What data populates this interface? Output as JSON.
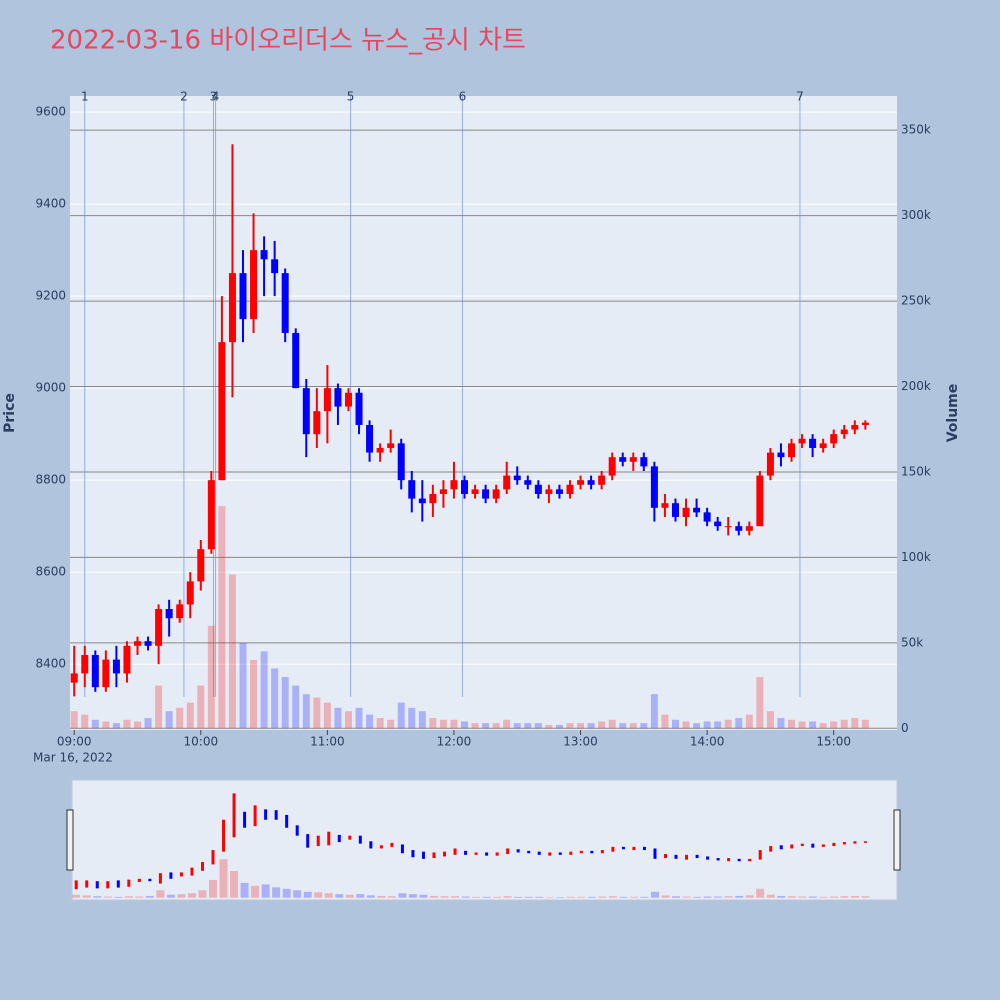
{
  "chart_data": {
    "type": "candlestick",
    "title": "2022-03-16 바이오리더스 뉴스_공시 차트",
    "ylabel": "Price",
    "y2label": "Volume",
    "x_date_label": "Mar 16, 2022",
    "increasing_color": "#ff0000",
    "decreasing_color": "#0000ff",
    "xlim": [
      "2022-03-16 08:58",
      "2022-03-16 15:30"
    ],
    "xticks": [
      {
        "value": "2022-03-16 09:00",
        "label": "09:00"
      },
      {
        "value": "2022-03-16 10:00",
        "label": "10:00"
      },
      {
        "value": "2022-03-16 11:00",
        "label": "11:00"
      },
      {
        "value": "2022-03-16 12:00",
        "label": "12:00"
      },
      {
        "value": "2022-03-16 13:00",
        "label": "13:00"
      },
      {
        "value": "2022-03-16 14:00",
        "label": "14:00"
      },
      {
        "value": "2022-03-16 15:00",
        "label": "15:00"
      }
    ],
    "ylim": [
      8257,
      9635
    ],
    "yticks": [
      8400,
      8600,
      8800,
      9000,
      9200,
      9400,
      9600
    ],
    "y2lim": [
      -1000,
      370000
    ],
    "y2ticks": [
      0,
      {
        "value": 50000,
        "label": "50k"
      },
      {
        "value": 100000,
        "label": "100k"
      },
      {
        "value": 150000,
        "label": "150k"
      },
      {
        "value": 200000,
        "label": "200k"
      },
      {
        "value": 250000,
        "label": "250k"
      },
      {
        "value": 300000,
        "label": "300k"
      },
      {
        "value": 350000,
        "label": "350k"
      }
    ],
    "annotations": [
      {
        "x": "2022-03-16 09:05",
        "label": "1"
      },
      {
        "x": "2022-03-16 09:52",
        "label": "2"
      },
      {
        "x": "2022-03-16 10:06",
        "label": "3"
      },
      {
        "x": "2022-03-16 10:07",
        "label": "4"
      },
      {
        "x": "2022-03-16 11:11",
        "label": "5"
      },
      {
        "x": "2022-03-16 12:04",
        "label": "6"
      },
      {
        "x": "2022-03-16 14:44",
        "label": "7"
      }
    ],
    "x": [
      "2022-03-16 09:00",
      "2022-03-16 09:05",
      "2022-03-16 09:10",
      "2022-03-16 09:15",
      "2022-03-16 09:20",
      "2022-03-16 09:25",
      "2022-03-16 09:30",
      "2022-03-16 09:35",
      "2022-03-16 09:40",
      "2022-03-16 09:45",
      "2022-03-16 09:50",
      "2022-03-16 09:55",
      "2022-03-16 10:00",
      "2022-03-16 10:05",
      "2022-03-16 10:10",
      "2022-03-16 10:15",
      "2022-03-16 10:20",
      "2022-03-16 10:25",
      "2022-03-16 10:30",
      "2022-03-16 10:35",
      "2022-03-16 10:40",
      "2022-03-16 10:45",
      "2022-03-16 10:50",
      "2022-03-16 10:55",
      "2022-03-16 11:00",
      "2022-03-16 11:05",
      "2022-03-16 11:10",
      "2022-03-16 11:15",
      "2022-03-16 11:20",
      "2022-03-16 11:25",
      "2022-03-16 11:30",
      "2022-03-16 11:35",
      "2022-03-16 11:40",
      "2022-03-16 11:45",
      "2022-03-16 11:50",
      "2022-03-16 11:55",
      "2022-03-16 12:00",
      "2022-03-16 12:05",
      "2022-03-16 12:10",
      "2022-03-16 12:15",
      "2022-03-16 12:20",
      "2022-03-16 12:25",
      "2022-03-16 12:30",
      "2022-03-16 12:35",
      "2022-03-16 12:40",
      "2022-03-16 12:45",
      "2022-03-16 12:50",
      "2022-03-16 12:55",
      "2022-03-16 13:00",
      "2022-03-16 13:05",
      "2022-03-16 13:10",
      "2022-03-16 13:15",
      "2022-03-16 13:20",
      "2022-03-16 13:25",
      "2022-03-16 13:30",
      "2022-03-16 13:35",
      "2022-03-16 13:40",
      "2022-03-16 13:45",
      "2022-03-16 13:50",
      "2022-03-16 13:55",
      "2022-03-16 14:00",
      "2022-03-16 14:05",
      "2022-03-16 14:10",
      "2022-03-16 14:15",
      "2022-03-16 14:20",
      "2022-03-16 14:25",
      "2022-03-16 14:30",
      "2022-03-16 14:35",
      "2022-03-16 14:40",
      "2022-03-16 14:45",
      "2022-03-16 14:50",
      "2022-03-16 14:55",
      "2022-03-16 15:00",
      "2022-03-16 15:05",
      "2022-03-16 15:10",
      "2022-03-16 15:15"
    ],
    "open": [
      8360,
      8380,
      8420,
      8350,
      8410,
      8380,
      8440,
      8450,
      8440,
      8520,
      8500,
      8530,
      8580,
      8650,
      8800,
      9100,
      9250,
      9150,
      9300,
      9280,
      9250,
      9120,
      9000,
      8900,
      8950,
      9000,
      8960,
      8990,
      8920,
      8860,
      8870,
      8880,
      8800,
      8760,
      8750,
      8770,
      8780,
      8800,
      8770,
      8780,
      8760,
      8780,
      8810,
      8800,
      8790,
      8770,
      8780,
      8770,
      8790,
      8800,
      8790,
      8810,
      8850,
      8840,
      8850,
      8830,
      8740,
      8750,
      8720,
      8740,
      8730,
      8710,
      8700,
      8700,
      8690,
      8700,
      8810,
      8860,
      8850,
      8880,
      8890,
      8870,
      8880,
      8900,
      8910,
      8920
    ],
    "high": [
      8440,
      8440,
      8430,
      8430,
      8440,
      8450,
      8460,
      8460,
      8530,
      8540,
      8540,
      8600,
      8670,
      8820,
      9200,
      9530,
      9300,
      9380,
      9330,
      9320,
      9260,
      9130,
      9020,
      9000,
      9050,
      9010,
      9000,
      9000,
      8930,
      8880,
      8910,
      8890,
      8820,
      8800,
      8790,
      8800,
      8840,
      8810,
      8790,
      8790,
      8790,
      8840,
      8830,
      8810,
      8800,
      8790,
      8790,
      8800,
      8810,
      8810,
      8820,
      8860,
      8860,
      8860,
      8860,
      8840,
      8770,
      8760,
      8760,
      8760,
      8740,
      8720,
      8720,
      8710,
      8710,
      8820,
      8870,
      8880,
      8890,
      8900,
      8900,
      8890,
      8910,
      8920,
      8930,
      8930
    ],
    "low": [
      8330,
      8350,
      8340,
      8340,
      8350,
      8360,
      8420,
      8430,
      8400,
      8460,
      8490,
      8500,
      8560,
      8640,
      8800,
      8980,
      9100,
      9120,
      9200,
      9200,
      9100,
      9000,
      8850,
      8870,
      8880,
      8920,
      8950,
      8900,
      8840,
      8840,
      8860,
      8780,
      8730,
      8710,
      8720,
      8740,
      8760,
      8760,
      8760,
      8750,
      8750,
      8770,
      8790,
      8780,
      8760,
      8750,
      8760,
      8760,
      8780,
      8780,
      8780,
      8800,
      8830,
      8820,
      8820,
      8710,
      8720,
      8710,
      8700,
      8720,
      8700,
      8690,
      8680,
      8680,
      8680,
      8700,
      8800,
      8830,
      8840,
      8870,
      8850,
      8860,
      8870,
      8890,
      8900,
      8910
    ],
    "close": [
      8380,
      8420,
      8350,
      8410,
      8380,
      8440,
      8450,
      8440,
      8520,
      8500,
      8530,
      8580,
      8650,
      8800,
      9100,
      9250,
      9150,
      9300,
      9280,
      9250,
      9120,
      9000,
      8900,
      8950,
      9000,
      8960,
      8990,
      8920,
      8860,
      8870,
      8880,
      8800,
      8760,
      8750,
      8770,
      8780,
      8800,
      8770,
      8780,
      8760,
      8780,
      8810,
      8800,
      8790,
      8770,
      8780,
      8770,
      8790,
      8800,
      8790,
      8810,
      8850,
      8840,
      8850,
      8830,
      8740,
      8750,
      8720,
      8740,
      8730,
      8710,
      8700,
      8700,
      8690,
      8700,
      8810,
      8860,
      8850,
      8880,
      8890,
      8870,
      8880,
      8900,
      8910,
      8920,
      8925
    ],
    "volume": [
      10000,
      8000,
      5000,
      4000,
      3000,
      5000,
      4000,
      6000,
      25000,
      10000,
      12000,
      15000,
      25000,
      60000,
      130000,
      90000,
      50000,
      40000,
      45000,
      35000,
      30000,
      25000,
      20000,
      18000,
      15000,
      12000,
      10000,
      12000,
      8000,
      6000,
      5000,
      15000,
      12000,
      10000,
      6000,
      5000,
      5000,
      4000,
      3000,
      3000,
      3000,
      5000,
      3000,
      3000,
      3000,
      2000,
      2000,
      3000,
      3000,
      3000,
      4000,
      5000,
      3000,
      3000,
      3000,
      20000,
      8000,
      5000,
      4000,
      3000,
      4000,
      4000,
      5000,
      6000,
      8000,
      30000,
      10000,
      6000,
      5000,
      4000,
      4000,
      3000,
      4000,
      5000,
      6000,
      5000
    ]
  }
}
